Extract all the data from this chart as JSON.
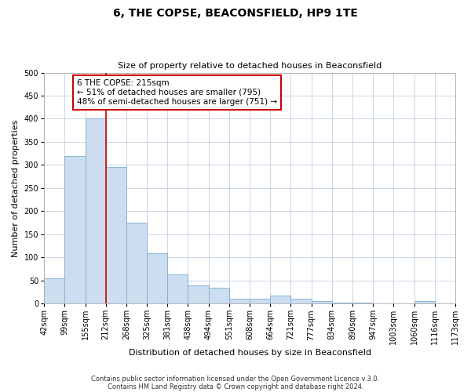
{
  "title": "6, THE COPSE, BEACONSFIELD, HP9 1TE",
  "subtitle": "Size of property relative to detached houses in Beaconsfield",
  "xlabel": "Distribution of detached houses by size in Beaconsfield",
  "ylabel": "Number of detached properties",
  "bar_values": [
    55,
    320,
    400,
    295,
    175,
    108,
    63,
    40,
    35,
    10,
    10,
    17,
    10,
    5,
    2,
    2,
    0,
    0,
    5,
    0
  ],
  "bin_labels": [
    "42sqm",
    "99sqm",
    "155sqm",
    "212sqm",
    "268sqm",
    "325sqm",
    "381sqm",
    "438sqm",
    "494sqm",
    "551sqm",
    "608sqm",
    "664sqm",
    "721sqm",
    "777sqm",
    "834sqm",
    "890sqm",
    "947sqm",
    "1003sqm",
    "1060sqm",
    "1116sqm",
    "1173sqm"
  ],
  "bar_color": "#ccddef",
  "bar_edge_color": "#7aadd4",
  "vline_x_idx": 3,
  "vline_color": "#cc0000",
  "annotation_text": "6 THE COPSE: 215sqm\n← 51% of detached houses are smaller (795)\n48% of semi-detached houses are larger (751) →",
  "annotation_box_facecolor": "#ffffff",
  "annotation_box_edgecolor": "#cc0000",
  "ylim": [
    0,
    500
  ],
  "yticks": [
    0,
    50,
    100,
    150,
    200,
    250,
    300,
    350,
    400,
    450,
    500
  ],
  "footer1": "Contains HM Land Registry data © Crown copyright and database right 2024.",
  "footer2": "Contains public sector information licensed under the Open Government Licence v.3.0.",
  "background_color": "#ffffff",
  "grid_color": "#c0d0e0",
  "title_fontsize": 10,
  "subtitle_fontsize": 8,
  "tick_fontsize": 7,
  "axis_label_fontsize": 8,
  "annotation_fontsize": 7.5,
  "footer_fontsize": 6
}
